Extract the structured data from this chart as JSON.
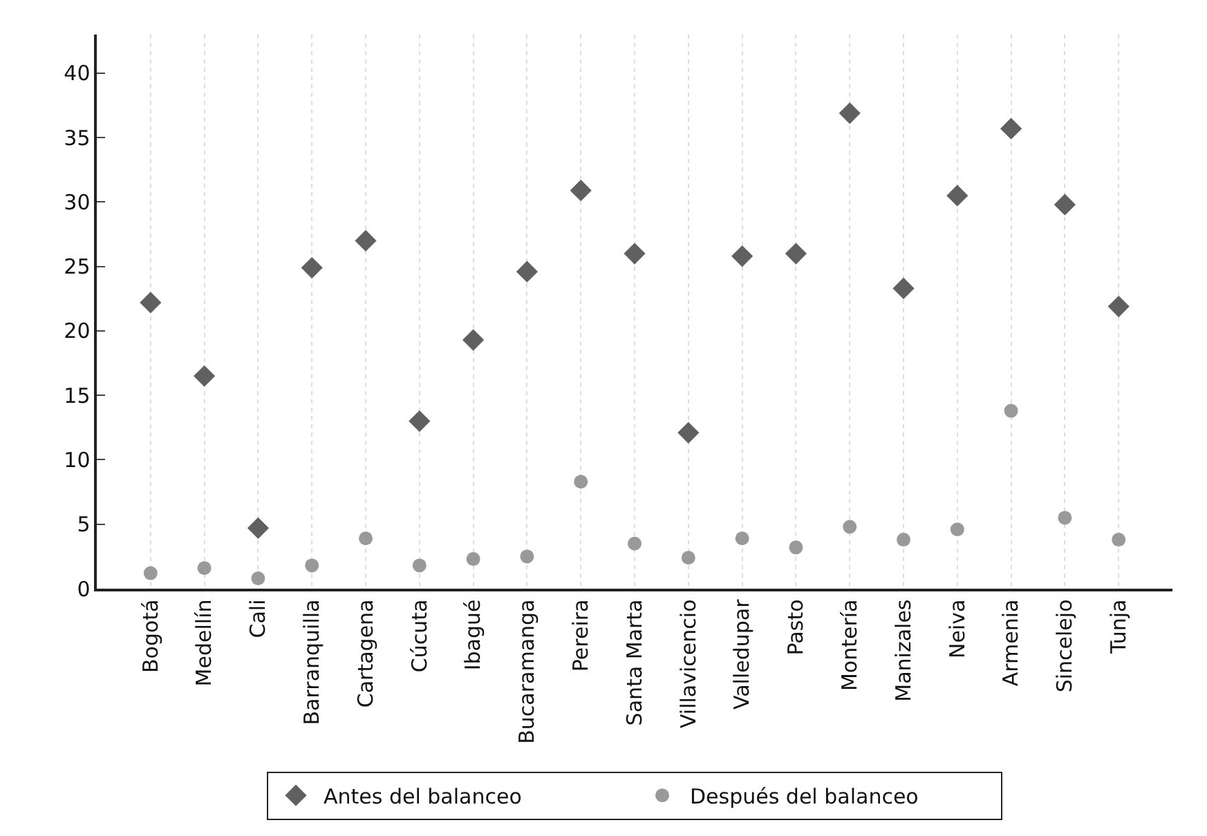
{
  "chart_data": {
    "type": "scatter",
    "categories": [
      "Bogotá",
      "Medellín",
      "Cali",
      "Barranquilla",
      "Cartagena",
      "Cúcuta",
      "Ibagué",
      "Bucaramanga",
      "Pereira",
      "Santa Marta",
      "Villavicencio",
      "Valledupar",
      "Pasto",
      "Montería",
      "Manizales",
      "Neiva",
      "Armenia",
      "Sincelejo",
      "Tunja"
    ],
    "series": [
      {
        "name": "Antes del balanceo",
        "color": "#606060",
        "marker": "diamond",
        "values": [
          22.2,
          16.5,
          4.7,
          24.9,
          27.0,
          13.0,
          19.3,
          24.6,
          30.9,
          26.0,
          12.1,
          25.8,
          26.0,
          36.9,
          23.3,
          30.5,
          35.7,
          29.8,
          21.9
        ]
      },
      {
        "name": "Después del balanceo",
        "color": "#999999",
        "marker": "circle",
        "values": [
          1.2,
          1.6,
          0.8,
          1.8,
          3.9,
          1.8,
          2.3,
          2.5,
          8.3,
          3.5,
          2.4,
          3.9,
          3.2,
          4.8,
          3.8,
          4.6,
          13.8,
          5.5,
          3.8
        ]
      }
    ],
    "ylim": [
      0,
      43
    ],
    "yticks": [
      0,
      5,
      10,
      15,
      20,
      25,
      30,
      35,
      40
    ],
    "grid": "x",
    "legend": "bottom"
  }
}
